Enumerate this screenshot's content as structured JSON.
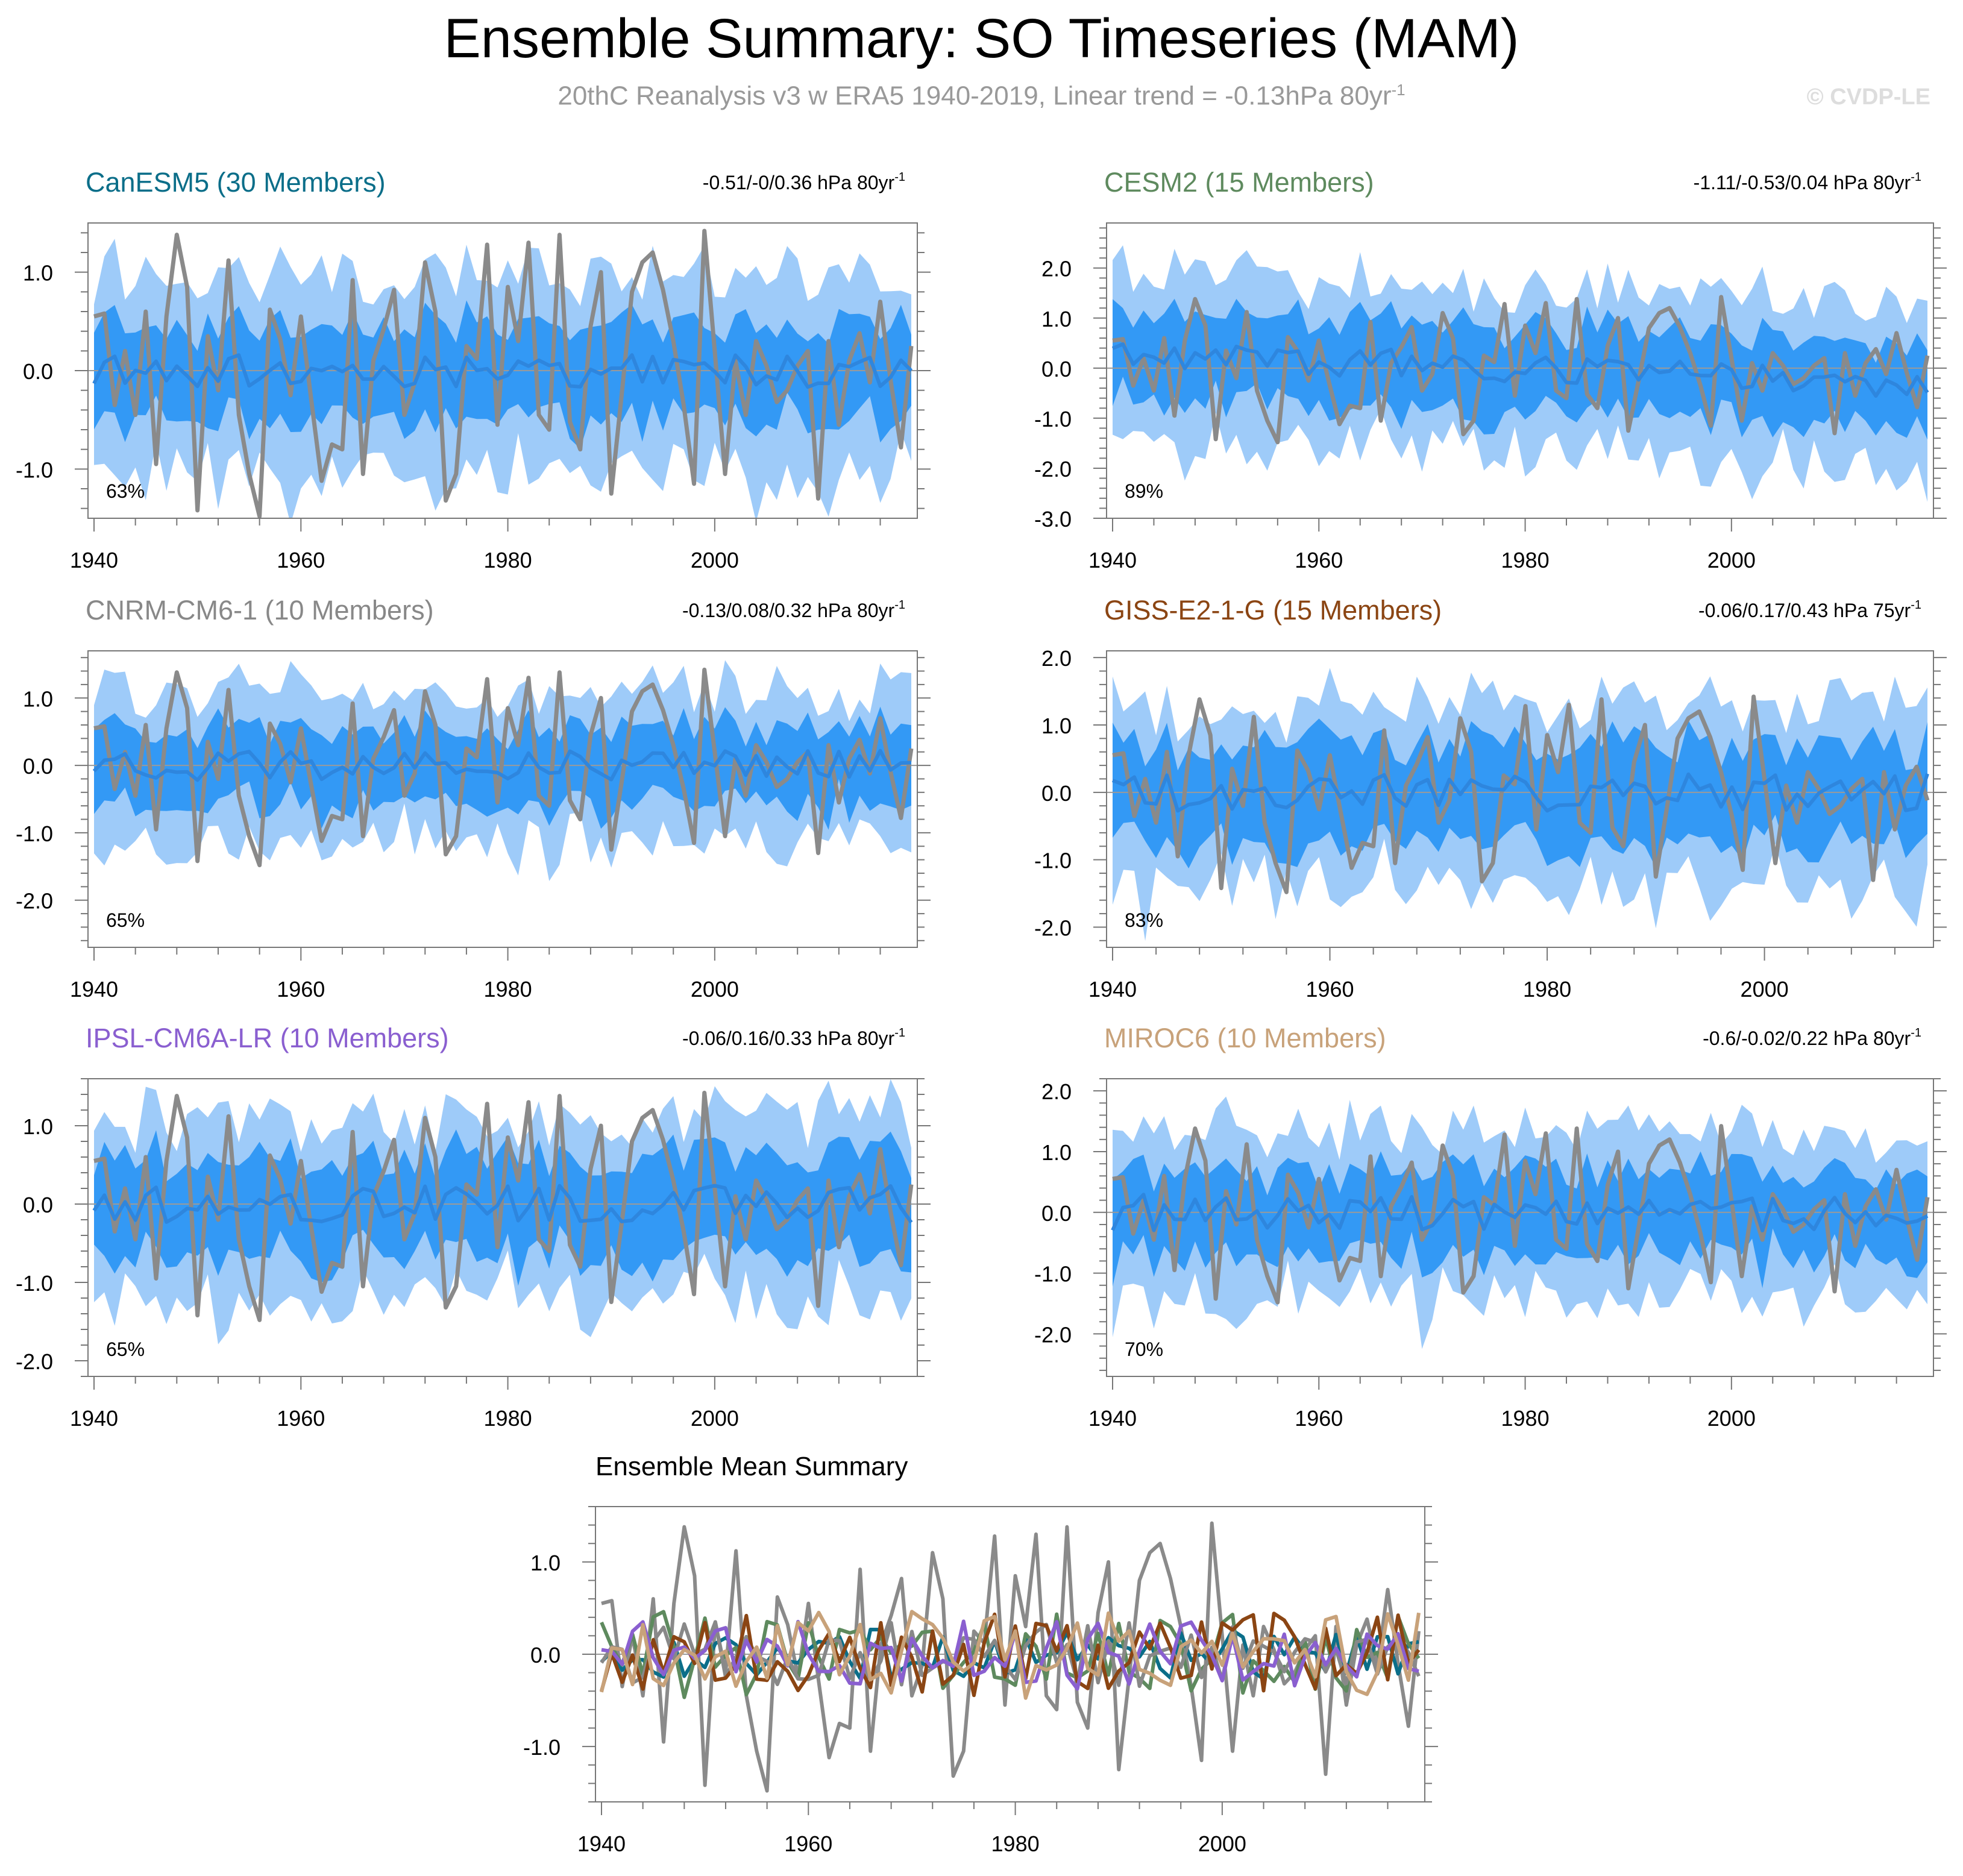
{
  "title": "Ensemble Summary: SO Timeseries (MAM)",
  "subtitle": "20thC Reanalysis v3 w ERA5 1940-2019, Linear trend = -0.13hPa 80yr",
  "subtitle_sup": "-1",
  "watermark": "© CVDP-LE",
  "colors": {
    "band_outer": "#9ecbf9",
    "band_inner": "#3399f5",
    "mean_line": "#2e86de",
    "obs_line": "#8a8a8a",
    "zero_line": "#9a9a9a",
    "frame": "#777777"
  },
  "obs_series": [
    0.55,
    0.58,
    -0.35,
    0.2,
    -0.45,
    0.6,
    -0.95,
    0.55,
    1.38,
    0.85,
    -1.42,
    0.35,
    -0.2,
    1.12,
    -0.45,
    -1.05,
    -1.48,
    0.62,
    0.32,
    -0.25,
    0.55,
    -0.3,
    -1.12,
    -0.75,
    -0.8,
    0.92,
    -1.05,
    0.1,
    0.42,
    0.82,
    -0.45,
    -0.12,
    1.1,
    0.6,
    -1.32,
    -1.05,
    0.25,
    0.12,
    1.28,
    -0.55,
    0.85,
    0.3,
    1.3,
    -0.45,
    -0.6,
    1.38,
    -0.52,
    -0.8,
    0.45,
    1.0,
    -1.25,
    -0.25,
    0.8,
    1.1,
    1.2,
    0.82,
    0.3,
    -0.35,
    -1.15,
    1.42,
    0.2,
    -1.05,
    0.1,
    -0.45,
    0.3,
    0.05,
    -0.32,
    -0.2,
    0.05,
    0.2,
    -1.3,
    0.3,
    -0.55,
    0.1,
    0.38,
    -0.12,
    0.7,
    -0.1,
    -0.78,
    0.25
  ],
  "chart_data": [
    {
      "type": "area",
      "title": "CanESM5 (30 Members)",
      "title_color": "#0b6e89",
      "trend_text": "-0.51/-0/0.36 hPa 80yr",
      "trend_sup": "-1",
      "percent_label": "63%",
      "xlim": [
        1940,
        2019
      ],
      "ylim": [
        -1.5,
        1.5
      ],
      "yticks": [
        -1.0,
        0.0,
        1.0
      ],
      "ytick_labels": [
        "-1.0",
        "0.0",
        "1.0"
      ],
      "xticks": [
        1940,
        1960,
        1980,
        2000
      ],
      "xtick_labels": [
        "1940",
        "1960",
        "1980",
        "2000"
      ],
      "start_year": 1940,
      "mean_amp": 0.17,
      "inner": 0.47,
      "outer": 0.93,
      "seed": 1
    },
    {
      "type": "area",
      "title": "CESM2 (15 Members)",
      "title_color": "#5e8a5e",
      "trend_text": "-1.11/-0.53/0.04 hPa 80yr",
      "trend_sup": "-1",
      "percent_label": "89%",
      "xlim": [
        1940,
        2019
      ],
      "ylim": [
        -3.0,
        2.9
      ],
      "yticks": [
        -3.0,
        -2.0,
        -1.0,
        0.0,
        1.0,
        2.0
      ],
      "ytick_labels": [
        "-3.0",
        "-2.0",
        "-1.0",
        "0.0",
        "1.0",
        "2.0"
      ],
      "xticks": [
        1940,
        1960,
        1980,
        2000
      ],
      "xtick_labels": [
        "1940",
        "1960",
        "1980",
        "2000"
      ],
      "start_year": 1940,
      "mean_amp": 0.3,
      "inner": 0.85,
      "outer": 1.55,
      "trend": -0.008,
      "seed": 2
    },
    {
      "type": "area",
      "title": "CNRM-CM6-1 (10 Members)",
      "title_color": "#888888",
      "trend_text": "-0.13/0.08/0.32 hPa 80yr",
      "trend_sup": "-1",
      "percent_label": "65%",
      "xlim": [
        1940,
        2019
      ],
      "ylim": [
        -2.7,
        1.7
      ],
      "yticks": [
        -2.0,
        -1.0,
        0.0,
        1.0
      ],
      "ytick_labels": [
        "-2.0",
        "-1.0",
        "0.0",
        "1.0"
      ],
      "xticks": [
        1940,
        1960,
        1980,
        2000
      ],
      "xtick_labels": [
        "1940",
        "1960",
        "1980",
        "2000"
      ],
      "start_year": 1940,
      "mean_amp": 0.22,
      "inner": 0.55,
      "outer": 1.05,
      "seed": 3
    },
    {
      "type": "area",
      "title": "GISS-E2-1-G (15 Members)",
      "title_color": "#8b4513",
      "trend_text": "-0.06/0.17/0.43 hPa 75yr",
      "trend_sup": "-1",
      "percent_label": "83%",
      "xlim": [
        1940,
        2015
      ],
      "ylim": [
        -2.3,
        2.1
      ],
      "yticks": [
        -2.0,
        -1.0,
        0.0,
        1.0,
        2.0
      ],
      "ytick_labels": [
        "-2.0",
        "-1.0",
        "0.0",
        "1.0",
        "2.0"
      ],
      "xticks": [
        1940,
        1960,
        1980,
        2000
      ],
      "xtick_labels": [
        "1940",
        "1960",
        "1980",
        "2000"
      ],
      "start_year": 1940,
      "mean_amp": 0.28,
      "inner": 0.72,
      "outer": 1.28,
      "seed": 4
    },
    {
      "type": "area",
      "title": "IPSL-CM6A-LR (10 Members)",
      "title_color": "#8a5fd0",
      "trend_text": "-0.06/0.16/0.33 hPa 80yr",
      "trend_sup": "-1",
      "percent_label": "65%",
      "xlim": [
        1940,
        2019
      ],
      "ylim": [
        -2.2,
        1.6
      ],
      "yticks": [
        -2.0,
        -1.0,
        0.0,
        1.0
      ],
      "ytick_labels": [
        "-2.0",
        "-1.0",
        "0.0",
        "1.0"
      ],
      "xticks": [
        1940,
        1960,
        1980,
        2000
      ],
      "xtick_labels": [
        "1940",
        "1960",
        "1980",
        "2000"
      ],
      "start_year": 1940,
      "mean_amp": 0.24,
      "inner": 0.6,
      "outer": 1.1,
      "seed": 5
    },
    {
      "type": "area",
      "title": "MIROC6 (10 Members)",
      "title_color": "#c8a27a",
      "trend_text": "-0.6/-0.02/0.22 hPa 80yr",
      "trend_sup": "-1",
      "percent_label": "70%",
      "xlim": [
        1940,
        2019
      ],
      "ylim": [
        -2.7,
        2.2
      ],
      "yticks": [
        -2.0,
        -1.0,
        0.0,
        1.0,
        2.0
      ],
      "ytick_labels": [
        "-2.0",
        "-1.0",
        "0.0",
        "1.0",
        "2.0"
      ],
      "xticks": [
        1940,
        1960,
        1980,
        2000
      ],
      "xtick_labels": [
        "1940",
        "1960",
        "1980",
        "2000"
      ],
      "start_year": 1940,
      "mean_amp": 0.3,
      "inner": 0.68,
      "outer": 1.3,
      "seed": 6
    },
    {
      "type": "line",
      "title": "Ensemble Mean Summary",
      "title_color": "#000000",
      "xlim": [
        1940,
        2019
      ],
      "ylim": [
        -1.6,
        1.6
      ],
      "yticks": [
        -1.0,
        0.0,
        1.0
      ],
      "ytick_labels": [
        "-1.0",
        "0.0",
        "1.0"
      ],
      "xticks": [
        1940,
        1960,
        1980,
        2000
      ],
      "xtick_labels": [
        "1940",
        "1960",
        "1980",
        "2000"
      ],
      "series": [
        {
          "name": "CanESM5",
          "color": "#0b6e89",
          "amp": 0.17,
          "seed": 1
        },
        {
          "name": "CESM2",
          "color": "#5e8a5e",
          "amp": 0.3,
          "seed": 2
        },
        {
          "name": "CNRM-CM6-1",
          "color": "#888888",
          "amp": 0.22,
          "seed": 3
        },
        {
          "name": "GISS-E2-1-G",
          "color": "#8b4513",
          "amp": 0.28,
          "seed": 4
        },
        {
          "name": "IPSL-CM6A-LR",
          "color": "#8a5fd0",
          "amp": 0.24,
          "seed": 5
        },
        {
          "name": "MIROC6",
          "color": "#c8a27a",
          "amp": 0.3,
          "seed": 6
        }
      ]
    }
  ]
}
